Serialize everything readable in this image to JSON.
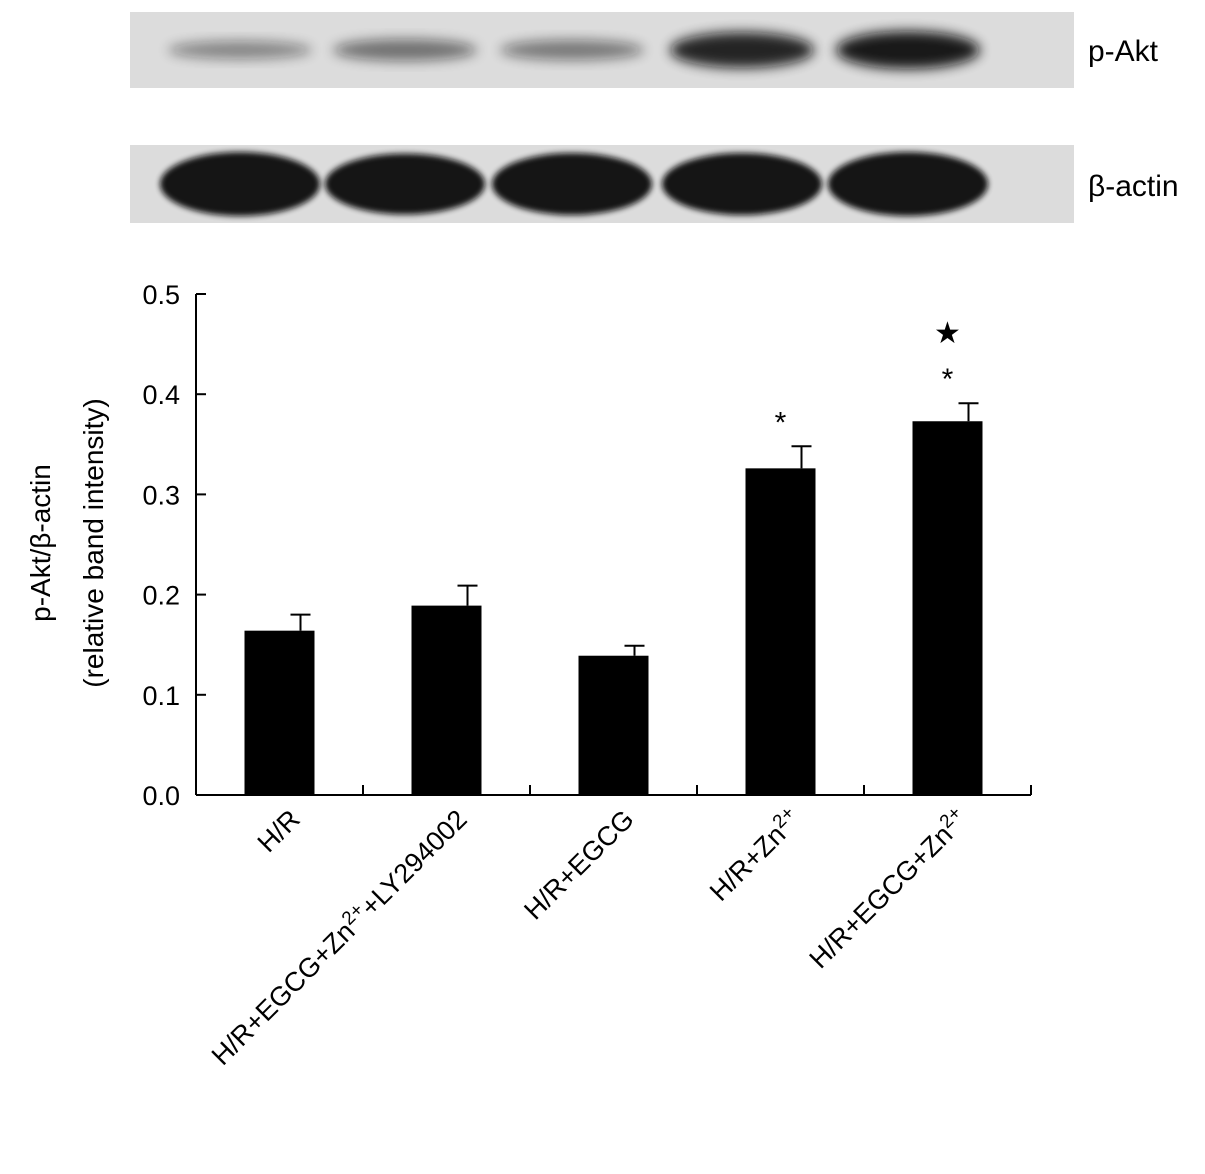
{
  "blot": {
    "rows": [
      {
        "label": "p-Akt",
        "intensities": [
          0.22,
          0.35,
          0.3,
          0.85,
          0.92
        ]
      },
      {
        "label": "β-actin",
        "intensities": [
          1.0,
          0.95,
          0.97,
          0.97,
          1.0
        ]
      }
    ],
    "colors": {
      "membrane": "#dcdcdc",
      "band": "#111111"
    }
  },
  "chart_data": {
    "type": "bar",
    "categories": [
      {
        "parts": [
          {
            "t": "H/R",
            "sup": false
          }
        ]
      },
      {
        "parts": [
          {
            "t": "H/R+EGCG+Zn",
            "sup": false
          },
          {
            "t": "2+",
            "sup": true
          },
          {
            "t": "+LY294002",
            "sup": false
          }
        ]
      },
      {
        "parts": [
          {
            "t": "H/R+EGCG",
            "sup": false
          }
        ]
      },
      {
        "parts": [
          {
            "t": "H/R+Zn",
            "sup": false
          },
          {
            "t": "2+",
            "sup": true
          }
        ]
      },
      {
        "parts": [
          {
            "t": "H/R+EGCG+Zn",
            "sup": false
          },
          {
            "t": "2+",
            "sup": true
          }
        ]
      }
    ],
    "values": [
      0.164,
      0.189,
      0.139,
      0.326,
      0.373
    ],
    "errors": [
      0.016,
      0.02,
      0.01,
      0.022,
      0.018
    ],
    "annotations": [
      [],
      [],
      [],
      [
        "*"
      ],
      [
        "*",
        "★"
      ]
    ],
    "ylabel_line1": "p-Akt/β-actin",
    "ylabel_line2": "(relative band intensity)",
    "ylim": [
      0.0,
      0.5
    ],
    "yticks": [
      "0.0",
      "0.1",
      "0.2",
      "0.3",
      "0.4",
      "0.5"
    ],
    "grid": false,
    "colors": {
      "bar": "#000000",
      "axis": "#000000"
    }
  }
}
